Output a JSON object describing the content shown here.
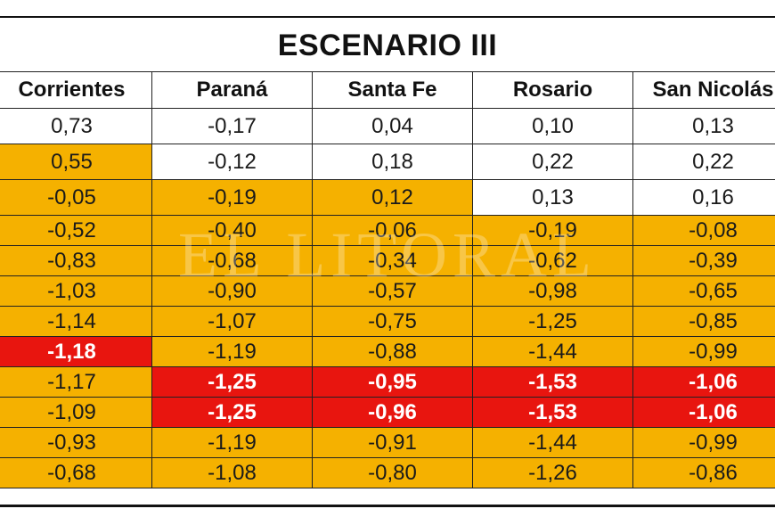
{
  "title": "ESCENARIO III",
  "watermark": "EL LITORAL",
  "colors": {
    "orange": "#f5b100",
    "red": "#e8150f",
    "white": "#ffffff"
  },
  "table": {
    "headers": [
      "Corrientes",
      "Paraná",
      "Santa Fe",
      "Rosario",
      "San Nicolás"
    ],
    "rows": [
      {
        "cells": [
          {
            "v": "0,73",
            "c": "w"
          },
          {
            "v": "-0,17",
            "c": "w"
          },
          {
            "v": "0,04",
            "c": "w"
          },
          {
            "v": "0,10",
            "c": "w"
          },
          {
            "v": "0,13",
            "c": "w"
          }
        ]
      },
      {
        "cells": [
          {
            "v": "0,55",
            "c": "o"
          },
          {
            "v": "-0,12",
            "c": "w"
          },
          {
            "v": "0,18",
            "c": "w"
          },
          {
            "v": "0,22",
            "c": "w"
          },
          {
            "v": "0,22",
            "c": "w"
          }
        ]
      },
      {
        "cells": [
          {
            "v": "-0,05",
            "c": "o"
          },
          {
            "v": "-0,19",
            "c": "o"
          },
          {
            "v": "0,12",
            "c": "o"
          },
          {
            "v": "0,13",
            "c": "w"
          },
          {
            "v": "0,16",
            "c": "w"
          }
        ]
      },
      {
        "cells": [
          {
            "v": "-0,52",
            "c": "o"
          },
          {
            "v": "-0,40",
            "c": "o"
          },
          {
            "v": "-0,06",
            "c": "o"
          },
          {
            "v": "-0,19",
            "c": "o"
          },
          {
            "v": "-0,08",
            "c": "o"
          }
        ]
      },
      {
        "cells": [
          {
            "v": "-0,83",
            "c": "o"
          },
          {
            "v": "-0,68",
            "c": "o"
          },
          {
            "v": "-0,34",
            "c": "o"
          },
          {
            "v": "-0,62",
            "c": "o"
          },
          {
            "v": "-0,39",
            "c": "o"
          }
        ]
      },
      {
        "cells": [
          {
            "v": "-1,03",
            "c": "o"
          },
          {
            "v": "-0,90",
            "c": "o"
          },
          {
            "v": "-0,57",
            "c": "o"
          },
          {
            "v": "-0,98",
            "c": "o"
          },
          {
            "v": "-0,65",
            "c": "o"
          }
        ]
      },
      {
        "cells": [
          {
            "v": "-1,14",
            "c": "o"
          },
          {
            "v": "-1,07",
            "c": "o"
          },
          {
            "v": "-0,75",
            "c": "o"
          },
          {
            "v": "-1,25",
            "c": "o"
          },
          {
            "v": "-0,85",
            "c": "o"
          }
        ]
      },
      {
        "cells": [
          {
            "v": "-1,18",
            "c": "r"
          },
          {
            "v": "-1,19",
            "c": "o"
          },
          {
            "v": "-0,88",
            "c": "o"
          },
          {
            "v": "-1,44",
            "c": "o"
          },
          {
            "v": "-0,99",
            "c": "o"
          }
        ]
      },
      {
        "cells": [
          {
            "v": "-1,17",
            "c": "o"
          },
          {
            "v": "-1,25",
            "c": "r"
          },
          {
            "v": "-0,95",
            "c": "r"
          },
          {
            "v": "-1,53",
            "c": "r"
          },
          {
            "v": "-1,06",
            "c": "r"
          }
        ]
      },
      {
        "cells": [
          {
            "v": "-1,09",
            "c": "o"
          },
          {
            "v": "-1,25",
            "c": "r"
          },
          {
            "v": "-0,96",
            "c": "r"
          },
          {
            "v": "-1,53",
            "c": "r"
          },
          {
            "v": "-1,06",
            "c": "r"
          }
        ]
      },
      {
        "cells": [
          {
            "v": "-0,93",
            "c": "o"
          },
          {
            "v": "-1,19",
            "c": "o"
          },
          {
            "v": "-0,91",
            "c": "o"
          },
          {
            "v": "-1,44",
            "c": "o"
          },
          {
            "v": "-0,99",
            "c": "o"
          }
        ]
      },
      {
        "cells": [
          {
            "v": "-0,68",
            "c": "o"
          },
          {
            "v": "-1,08",
            "c": "o"
          },
          {
            "v": "-0,80",
            "c": "o"
          },
          {
            "v": "-1,26",
            "c": "o"
          },
          {
            "v": "-0,86",
            "c": "o"
          }
        ]
      }
    ]
  }
}
